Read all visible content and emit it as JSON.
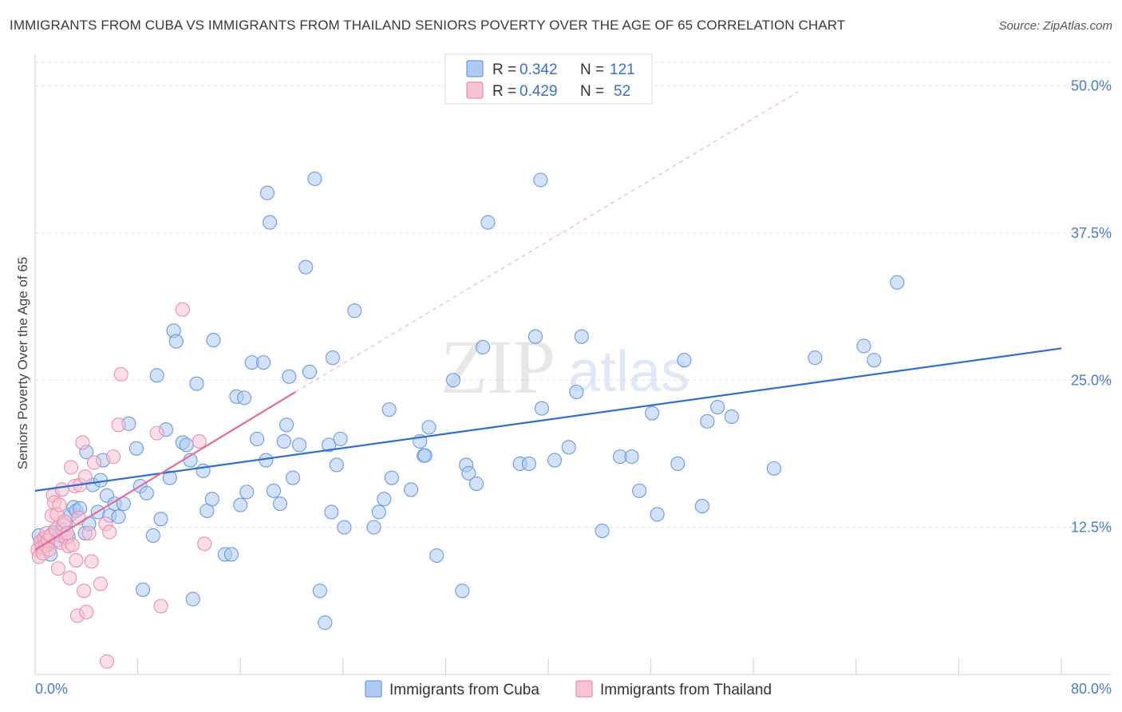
{
  "title": "IMMIGRANTS FROM CUBA VS IMMIGRANTS FROM THAILAND SENIORS POVERTY OVER THE AGE OF 65 CORRELATION CHART",
  "source": "Source: ZipAtlas.com",
  "watermark": {
    "zip": "ZIP",
    "atlas": "atlas"
  },
  "colors": {
    "cuba_fill": "#aecbf2",
    "cuba_stroke": "#6a9be0",
    "cuba_line": "#2f6fce",
    "thai_fill": "#f8c3d3",
    "thai_stroke": "#ea8fae",
    "thai_line": "#e06d97",
    "grid": "#dddddd",
    "tick": "#4a7cc9"
  },
  "legend": {
    "rows": [
      {
        "r_label": "R = ",
        "r_value": "0.342",
        "n_label": "N = ",
        "n_value": "121"
      },
      {
        "r_label": "R = ",
        "r_value": "0.429",
        "n_label": "N = ",
        "n_value": "52"
      }
    ]
  },
  "chart_data": {
    "type": "scatter",
    "title": "IMMIGRANTS FROM CUBA VS IMMIGRANTS FROM THAILAND SENIORS POVERTY OVER THE AGE OF 65 CORRELATION CHART",
    "xlabel": "",
    "ylabel": "Seniors Poverty Over the Age of 65",
    "xlim": [
      0,
      80
    ],
    "ylim": [
      0,
      52
    ],
    "x_tick_labels": [
      "0.0%",
      "80.0%"
    ],
    "y_ticks": [
      12.5,
      25.0,
      37.5,
      50.0
    ],
    "y_tick_labels": [
      "12.5%",
      "25.0%",
      "37.5%",
      "50.0%"
    ],
    "grid": true,
    "legend_position": "top-center",
    "series": [
      {
        "name": "Immigrants from Cuba",
        "r": 0.342,
        "n": 121,
        "trend": {
          "x": [
            0,
            80
          ],
          "y": [
            15.6,
            27.7
          ]
        },
        "points": [
          [
            0.3,
            11.8
          ],
          [
            0.5,
            11.2
          ],
          [
            0.6,
            10.8
          ],
          [
            0.8,
            11.5
          ],
          [
            1.0,
            11.0
          ],
          [
            1.2,
            10.2
          ],
          [
            1.3,
            11.9
          ],
          [
            1.5,
            12.1
          ],
          [
            1.7,
            11.4
          ],
          [
            2.0,
            11.8
          ],
          [
            2.1,
            12.3
          ],
          [
            2.4,
            12.9
          ],
          [
            2.6,
            11.7
          ],
          [
            2.8,
            13.6
          ],
          [
            3.0,
            14.2
          ],
          [
            3.2,
            13.9
          ],
          [
            3.5,
            14.1
          ],
          [
            3.9,
            12.0
          ],
          [
            4.0,
            18.9
          ],
          [
            4.2,
            12.8
          ],
          [
            4.5,
            16.1
          ],
          [
            4.9,
            13.8
          ],
          [
            5.1,
            16.5
          ],
          [
            5.3,
            18.2
          ],
          [
            5.6,
            15.2
          ],
          [
            5.8,
            13.5
          ],
          [
            6.2,
            14.5
          ],
          [
            6.5,
            13.4
          ],
          [
            6.9,
            14.5
          ],
          [
            7.3,
            21.3
          ],
          [
            7.9,
            19.2
          ],
          [
            8.2,
            16.0
          ],
          [
            8.7,
            15.4
          ],
          [
            8.4,
            7.2
          ],
          [
            9.2,
            11.8
          ],
          [
            9.5,
            25.4
          ],
          [
            9.8,
            13.2
          ],
          [
            10.2,
            20.8
          ],
          [
            10.5,
            16.7
          ],
          [
            10.8,
            29.2
          ],
          [
            11.0,
            28.3
          ],
          [
            11.5,
            19.7
          ],
          [
            11.8,
            19.5
          ],
          [
            12.1,
            18.2
          ],
          [
            12.6,
            24.7
          ],
          [
            13.1,
            17.3
          ],
          [
            13.4,
            13.9
          ],
          [
            13.8,
            14.9
          ],
          [
            13.9,
            28.4
          ],
          [
            12.3,
            6.4
          ],
          [
            14.8,
            10.2
          ],
          [
            15.3,
            10.2
          ],
          [
            15.7,
            23.6
          ],
          [
            16.0,
            14.4
          ],
          [
            16.3,
            23.5
          ],
          [
            16.5,
            15.5
          ],
          [
            16.9,
            26.5
          ],
          [
            17.3,
            20.0
          ],
          [
            17.8,
            26.5
          ],
          [
            18.0,
            18.2
          ],
          [
            18.1,
            40.9
          ],
          [
            18.3,
            38.4
          ],
          [
            18.6,
            15.6
          ],
          [
            19.1,
            14.5
          ],
          [
            19.4,
            19.8
          ],
          [
            19.6,
            21.2
          ],
          [
            19.8,
            25.3
          ],
          [
            20.1,
            16.7
          ],
          [
            20.6,
            19.5
          ],
          [
            21.1,
            34.6
          ],
          [
            21.4,
            25.7
          ],
          [
            21.8,
            42.1
          ],
          [
            22.2,
            7.1
          ],
          [
            22.6,
            4.4
          ],
          [
            22.9,
            19.5
          ],
          [
            23.1,
            13.8
          ],
          [
            23.2,
            26.9
          ],
          [
            23.5,
            17.8
          ],
          [
            23.8,
            20.0
          ],
          [
            24.1,
            12.5
          ],
          [
            24.9,
            30.9
          ],
          [
            26.4,
            12.5
          ],
          [
            26.8,
            13.8
          ],
          [
            27.2,
            14.9
          ],
          [
            27.6,
            22.5
          ],
          [
            27.8,
            16.7
          ],
          [
            29.3,
            15.7
          ],
          [
            30.0,
            19.8
          ],
          [
            30.3,
            18.6
          ],
          [
            30.4,
            18.6
          ],
          [
            30.7,
            21.0
          ],
          [
            31.3,
            10.1
          ],
          [
            32.6,
            25.0
          ],
          [
            33.3,
            7.1
          ],
          [
            33.6,
            17.8
          ],
          [
            33.8,
            17.1
          ],
          [
            34.4,
            16.2
          ],
          [
            34.9,
            27.8
          ],
          [
            35.3,
            38.4
          ],
          [
            37.8,
            17.9
          ],
          [
            38.5,
            17.9
          ],
          [
            39.0,
            28.7
          ],
          [
            39.4,
            42.0
          ],
          [
            39.5,
            22.6
          ],
          [
            40.5,
            18.2
          ],
          [
            41.6,
            19.3
          ],
          [
            42.2,
            24.0
          ],
          [
            42.6,
            28.7
          ],
          [
            44.2,
            12.2
          ],
          [
            45.6,
            18.5
          ],
          [
            46.5,
            18.5
          ],
          [
            47.1,
            15.6
          ],
          [
            48.1,
            22.2
          ],
          [
            48.5,
            13.6
          ],
          [
            50.1,
            17.9
          ],
          [
            50.6,
            26.7
          ],
          [
            52.0,
            14.3
          ],
          [
            52.4,
            21.5
          ],
          [
            53.2,
            22.7
          ],
          [
            54.3,
            21.9
          ],
          [
            57.6,
            17.5
          ],
          [
            60.8,
            26.9
          ],
          [
            64.6,
            27.9
          ],
          [
            65.4,
            26.7
          ],
          [
            67.2,
            33.3
          ]
        ]
      },
      {
        "name": "Immigrants from Thailand",
        "r": 0.429,
        "n": 52,
        "trend": {
          "x": [
            0,
            20.3
          ],
          "y": [
            10.6,
            24.0
          ]
        },
        "trend_extension": {
          "x": [
            20.3,
            59.5
          ],
          "y": [
            24.0,
            49.5
          ]
        },
        "points": [
          [
            0.2,
            10.6
          ],
          [
            0.3,
            10.0
          ],
          [
            0.4,
            11.3
          ],
          [
            0.5,
            10.8
          ],
          [
            0.6,
            10.3
          ],
          [
            0.7,
            11.6
          ],
          [
            0.8,
            11.0
          ],
          [
            0.9,
            12.0
          ],
          [
            1.0,
            11.4
          ],
          [
            1.1,
            10.6
          ],
          [
            1.2,
            11.8
          ],
          [
            1.3,
            13.5
          ],
          [
            1.4,
            15.2
          ],
          [
            1.5,
            14.6
          ],
          [
            1.6,
            12.3
          ],
          [
            1.7,
            13.6
          ],
          [
            1.8,
            9.0
          ],
          [
            1.9,
            14.4
          ],
          [
            2.0,
            11.2
          ],
          [
            2.1,
            15.7
          ],
          [
            2.2,
            12.7
          ],
          [
            2.3,
            13.0
          ],
          [
            2.4,
            11.6
          ],
          [
            2.5,
            12.0
          ],
          [
            2.6,
            10.9
          ],
          [
            2.7,
            8.2
          ],
          [
            2.8,
            17.6
          ],
          [
            2.9,
            11.0
          ],
          [
            3.1,
            16.0
          ],
          [
            3.2,
            9.7
          ],
          [
            3.3,
            5.0
          ],
          [
            3.4,
            13.3
          ],
          [
            3.5,
            16.1
          ],
          [
            3.7,
            19.7
          ],
          [
            3.8,
            7.1
          ],
          [
            3.9,
            16.8
          ],
          [
            4.0,
            5.3
          ],
          [
            4.2,
            12.0
          ],
          [
            4.4,
            9.6
          ],
          [
            4.6,
            18.0
          ],
          [
            5.1,
            7.7
          ],
          [
            5.5,
            12.8
          ],
          [
            5.6,
            1.1
          ],
          [
            5.8,
            12.1
          ],
          [
            6.1,
            18.5
          ],
          [
            6.5,
            21.2
          ],
          [
            6.7,
            25.5
          ],
          [
            9.5,
            20.5
          ],
          [
            9.8,
            5.8
          ],
          [
            11.5,
            31.0
          ],
          [
            12.8,
            19.8
          ],
          [
            13.2,
            11.1
          ]
        ]
      }
    ]
  },
  "bottom_legend": [
    "Immigrants from Cuba",
    "Immigrants from Thailand"
  ]
}
